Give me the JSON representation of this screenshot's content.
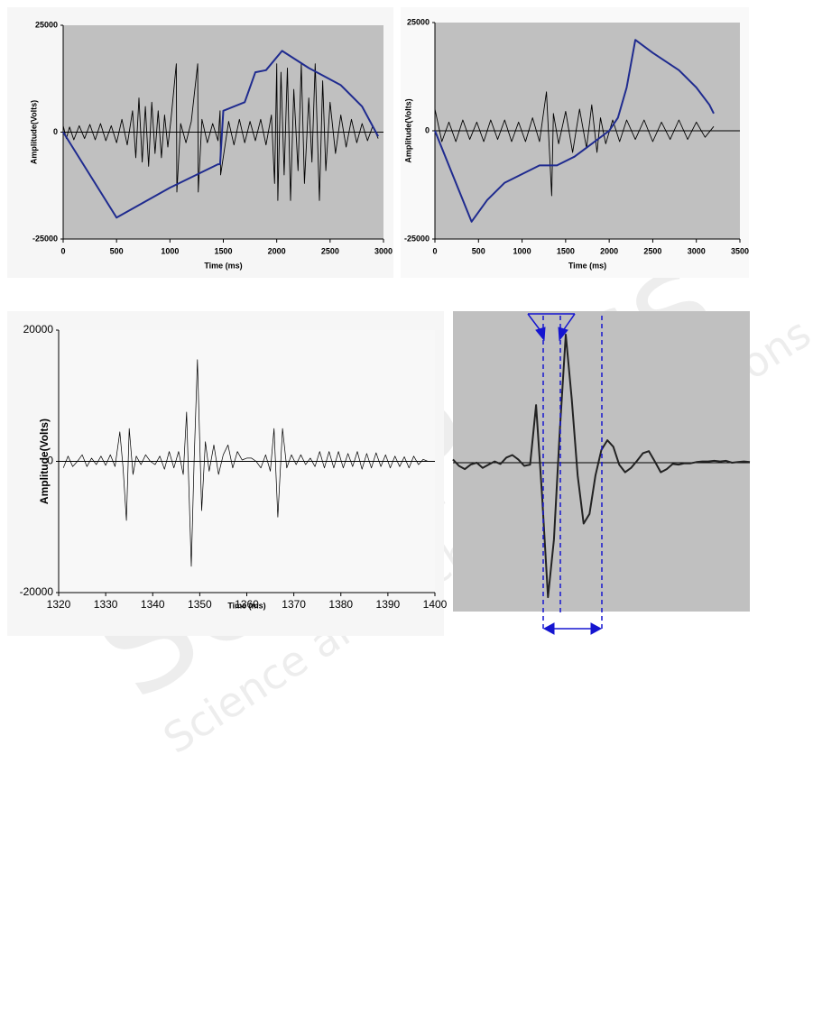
{
  "chart_data": [
    {
      "type": "line",
      "x_label": "Time (ms)",
      "y_label": "Amplitude(Volts)",
      "xlim": [
        0,
        3000
      ],
      "xticks": [
        0,
        500,
        1000,
        1500,
        2000,
        2500,
        3000
      ],
      "ylim": [
        -25000,
        25000
      ],
      "yticks": [
        -25000,
        0,
        25000
      ],
      "series": [
        {
          "color": "#000000",
          "x": [
            0,
            30,
            60,
            100,
            150,
            200,
            250,
            300,
            350,
            400,
            450,
            500,
            550,
            600,
            650,
            680,
            710,
            740,
            770,
            800,
            830,
            860,
            890,
            920,
            950,
            980,
            1010,
            1060,
            1065,
            1100,
            1150,
            1200,
            1260,
            1265,
            1300,
            1350,
            1400,
            1450,
            1470,
            1475,
            1550,
            1600,
            1650,
            1700,
            1750,
            1800,
            1850,
            1900,
            1950,
            1980,
            2000,
            2010,
            2040,
            2070,
            2100,
            2130,
            2160,
            2200,
            2230,
            2260,
            2300,
            2330,
            2360,
            2400,
            2430,
            2460,
            2500,
            2550,
            2600,
            2650,
            2700,
            2750,
            2800,
            2850,
            2900,
            2950
          ],
          "values": [
            1500,
            -1500,
            1200,
            -1800,
            1500,
            -1500,
            1800,
            -1800,
            2000,
            -2000,
            1500,
            -2500,
            3000,
            -3000,
            5000,
            -6000,
            8000,
            -7000,
            6000,
            -8000,
            7000,
            -5000,
            5000,
            -6000,
            4000,
            -3500,
            3000,
            16000,
            -14000,
            2000,
            -2500,
            2500,
            16000,
            -14000,
            3000,
            -2500,
            2000,
            -2000,
            5000,
            -10000,
            2500,
            -3000,
            3000,
            -2500,
            2500,
            -2000,
            3000,
            -3000,
            4000,
            -12000,
            16000,
            -16000,
            14000,
            -10000,
            15000,
            -16000,
            10000,
            -9000,
            16000,
            -12000,
            8000,
            -7000,
            16000,
            -16000,
            12000,
            -9000,
            7000,
            -5000,
            4000,
            -3500,
            3000,
            -2500,
            2000,
            -2000,
            1500,
            -1500
          ]
        },
        {
          "color": "#1f2b8f",
          "x": [
            0,
            250,
            500,
            1000,
            1450,
            1470,
            1500,
            1700,
            1800,
            1900,
            2050,
            2300,
            2600,
            2800,
            2950
          ],
          "values": [
            0,
            -10000,
            -20000,
            -13000,
            -7500,
            -7500,
            5000,
            7000,
            14000,
            14500,
            19000,
            15000,
            11000,
            6000,
            -1000
          ]
        }
      ]
    },
    {
      "type": "line",
      "x_label": "Time (ms)",
      "y_label": "Amplitude(Volts)",
      "xlim": [
        0,
        3500
      ],
      "xticks": [
        0,
        500,
        1000,
        1500,
        2000,
        2500,
        3000,
        3500
      ],
      "ylim": [
        -25000,
        25000
      ],
      "yticks": [
        -25000,
        0,
        25000
      ],
      "series": [
        {
          "color": "#000000",
          "x": [
            0,
            80,
            160,
            240,
            320,
            400,
            480,
            560,
            640,
            720,
            800,
            880,
            960,
            1040,
            1120,
            1200,
            1280,
            1340,
            1360,
            1420,
            1500,
            1580,
            1660,
            1740,
            1800,
            1860,
            1900,
            1960,
            2040,
            2120,
            2200,
            2300,
            2400,
            2500,
            2600,
            2700,
            2800,
            2900,
            3000,
            3100,
            3200
          ],
          "values": [
            5000,
            -2500,
            2000,
            -2500,
            2500,
            -2000,
            2000,
            -2500,
            2500,
            -2000,
            2500,
            -2500,
            2000,
            -2500,
            3000,
            -2500,
            9000,
            -15000,
            4000,
            -3000,
            4500,
            -5000,
            5000,
            -4000,
            6000,
            -5000,
            3000,
            -3000,
            2500,
            -2500,
            2500,
            -2000,
            2500,
            -2500,
            2000,
            -2000,
            2500,
            -2000,
            2000,
            -1500,
            1000
          ]
        },
        {
          "color": "#1f2b8f",
          "x": [
            0,
            200,
            420,
            600,
            800,
            1000,
            1200,
            1400,
            1600,
            1800,
            2000,
            2100,
            2200,
            2300,
            2500,
            2800,
            3000,
            3150,
            3200
          ],
          "values": [
            0,
            -10000,
            -21000,
            -16000,
            -12000,
            -10000,
            -8000,
            -8000,
            -6000,
            -3000,
            0,
            3000,
            10000,
            21000,
            18000,
            14000,
            10000,
            6000,
            4000
          ]
        }
      ]
    },
    {
      "type": "line",
      "x_label": "Time (ms)",
      "y_label": "Amplitude(Volts)",
      "xlim": [
        1320,
        1400
      ],
      "xticks": [
        1320,
        1330,
        1340,
        1350,
        1360,
        1370,
        1380,
        1390,
        1400
      ],
      "ylim": [
        -20000,
        20000
      ],
      "yticks": [
        -20000,
        0,
        20000
      ],
      "series": [
        {
          "color": "#000000",
          "x": [
            1321,
            1322,
            1323,
            1324,
            1325,
            1326,
            1327,
            1328,
            1329,
            1330,
            1331,
            1332,
            1333,
            1333.7,
            1334.4,
            1335,
            1335.8,
            1336.5,
            1337.5,
            1338.5,
            1339.5,
            1340.5,
            1341.5,
            1342.5,
            1343.5,
            1344.5,
            1345.5,
            1346.5,
            1347.2,
            1348.2,
            1348.8,
            1349.5,
            1350.4,
            1351.2,
            1352,
            1353,
            1354,
            1355,
            1356,
            1357,
            1358,
            1359,
            1360,
            1361,
            1362,
            1363,
            1364,
            1365,
            1365.8,
            1366.6,
            1367.6,
            1368.5,
            1369.5,
            1370.5,
            1371.5,
            1372.5,
            1373.5,
            1374.5,
            1375.5,
            1376.5,
            1377.5,
            1378.5,
            1379.5,
            1380.5,
            1381.5,
            1382.5,
            1383.5,
            1384.5,
            1385.5,
            1386.5,
            1387.5,
            1388.5,
            1389.5,
            1390.5,
            1391.5,
            1392.5,
            1393.5,
            1394.5,
            1395.5,
            1396.5,
            1397.5,
            1398.5
          ],
          "values": [
            -1000,
            800,
            -800,
            0,
            1000,
            -800,
            500,
            -500,
            800,
            -600,
            1000,
            -800,
            4500,
            -1000,
            -9000,
            5000,
            -2000,
            800,
            -500,
            1000,
            0,
            -500,
            800,
            -1200,
            1500,
            -1000,
            1500,
            -2000,
            7500,
            -16000,
            0,
            15500,
            -7500,
            3000,
            -1500,
            2500,
            -2000,
            1000,
            2500,
            -1000,
            1500,
            200,
            500,
            500,
            0,
            -1000,
            1000,
            -1500,
            5000,
            -8500,
            5000,
            -1000,
            1000,
            -500,
            1000,
            -500,
            500,
            -800,
            1500,
            -1000,
            1500,
            -1000,
            1500,
            -1000,
            1200,
            -800,
            1500,
            -1200,
            1200,
            -1000,
            1300,
            -800,
            1000,
            -1000,
            800,
            -800,
            700,
            -1000,
            800,
            -500,
            300,
            0
          ]
        }
      ]
    },
    {
      "type": "line",
      "series": [
        {
          "color": "#222222",
          "values": [
            500,
            -500,
            -1000,
            -300,
            0,
            -800,
            -300,
            200,
            -200,
            800,
            1200,
            500,
            -500,
            -300,
            9000,
            -5000,
            -21000,
            -12000,
            5000,
            20000,
            10000,
            -2000,
            -9500,
            -8000,
            -2000,
            2000,
            3500,
            2500,
            -300,
            -1500,
            -800,
            300,
            1500,
            1800,
            200,
            -1500,
            -1000,
            -200,
            -300,
            -100,
            -100,
            100,
            200,
            200,
            300,
            200,
            300,
            0,
            100,
            200,
            100
          ]
        }
      ]
    }
  ],
  "watermark": {
    "title": "SciTePress",
    "subtitle": "Science and Technology Publications"
  }
}
